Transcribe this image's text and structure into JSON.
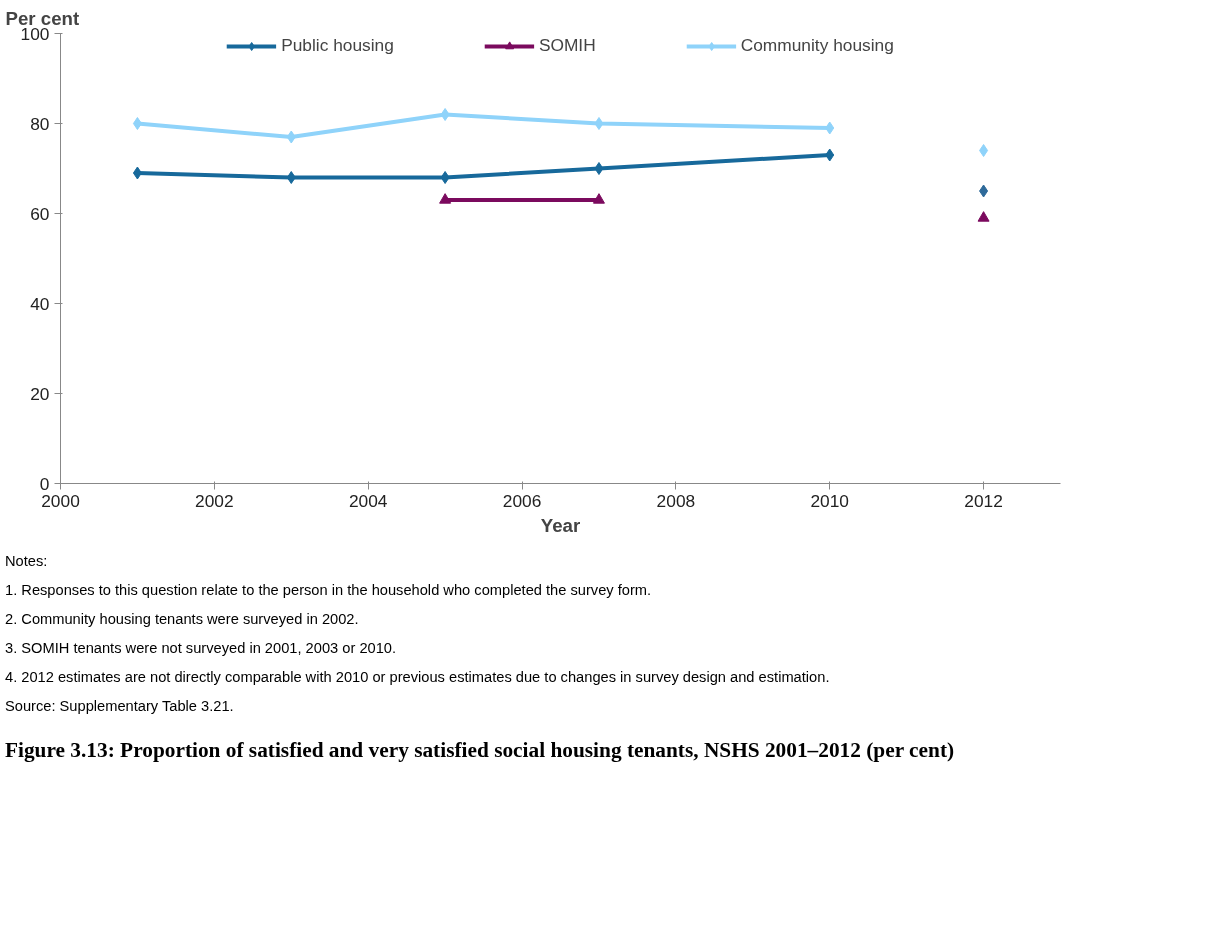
{
  "chart_data": {
    "type": "line",
    "title": "Figure 3.13: Proportion of satisfied and very satisfied social housing tenants, NSHS 2001–2012 (per cent)",
    "xlabel": "Year",
    "ylabel": "Per cent",
    "xlim": [
      2000,
      2013
    ],
    "xticks": [
      2000,
      2002,
      2004,
      2006,
      2008,
      2010,
      2012
    ],
    "ylim": [
      0,
      100
    ],
    "yticks": [
      0,
      20,
      40,
      60,
      80,
      100
    ],
    "grid": false,
    "legend": "top",
    "series": [
      {
        "name": "Public housing",
        "marker": "diamond",
        "color": "#17699b",
        "x": [
          2001,
          2003,
          2005,
          2007,
          2010
        ],
        "values": [
          69,
          68,
          68,
          70,
          73
        ]
      },
      {
        "name": "SOMIH",
        "marker": "triangle",
        "color": "#7b0a5e",
        "x": [
          2005,
          2007
        ],
        "values": [
          63,
          63
        ]
      },
      {
        "name": "Community housing",
        "marker": "diamond",
        "color": "#8fd3fa",
        "x": [
          2001,
          2003,
          2005,
          2007,
          2010
        ],
        "values": [
          80,
          77,
          82,
          80,
          79
        ]
      },
      {
        "type": "scatter",
        "marker": "diamond",
        "color": "#2e6a9a",
        "x": [
          2012
        ],
        "values": [
          65
        ]
      },
      {
        "type": "scatter",
        "marker": "triangle",
        "color": "#7b0a5e",
        "x": [
          2012
        ],
        "values": [
          59
        ]
      },
      {
        "type": "scatter",
        "marker": "diamond",
        "color": "#8fd3fa",
        "x": [
          2012
        ],
        "values": [
          74
        ]
      }
    ],
    "annotations": [
      "Notes:",
      "1. Responses to this question relate to the person in the household who completed the survey form.",
      "2. Community housing tenants were surveyed in 2002.",
      "3. SOMIH tenants were not surveyed in 2001, 2003 or 2010.",
      "4. 2012 estimates are not directly comparable with 2010 or previous estimates due to changes in survey design and estimation.",
      "Source: Supplementary Table 3.21."
    ]
  }
}
